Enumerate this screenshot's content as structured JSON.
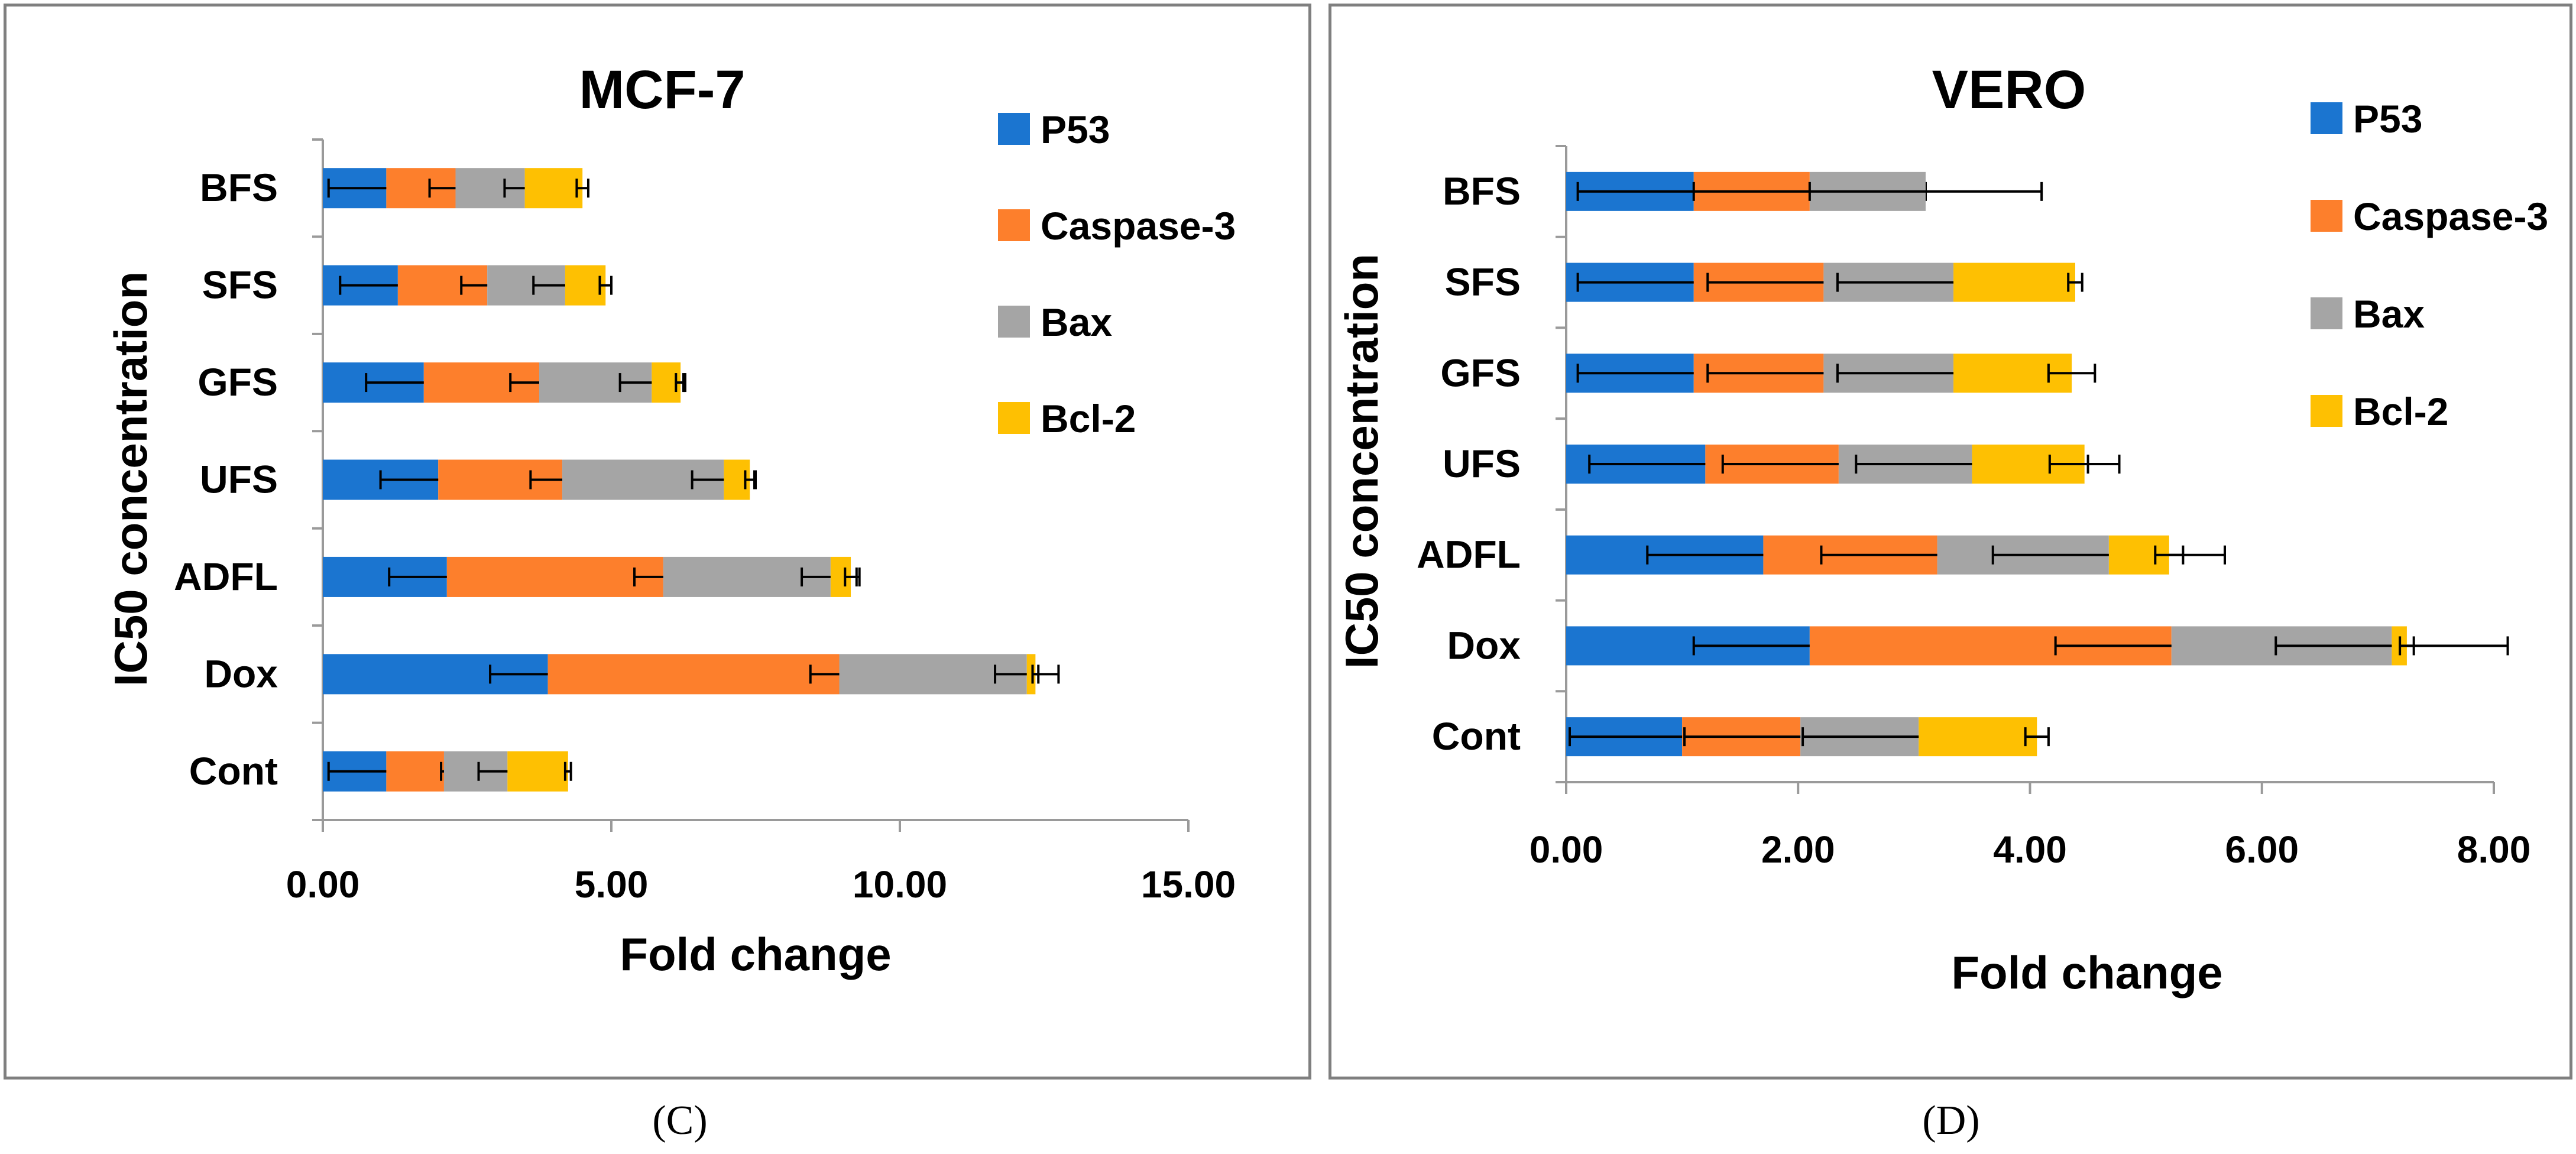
{
  "chart_data": [
    {
      "type": "bar",
      "orientation": "horizontal",
      "stacked": true,
      "title": "MCF-7",
      "xlabel": "Fold change",
      "ylabel": "IC50 concentration",
      "xlim": [
        0,
        15
      ],
      "xticks": [
        "0.00",
        "5.00",
        "10.00",
        "15.00"
      ],
      "xtick_values": [
        0,
        5,
        10,
        15
      ],
      "categories": [
        "BFS",
        "SFS",
        "GFS",
        "UFS",
        "ADFL",
        "Dox",
        "Cont"
      ],
      "series": [
        {
          "name": "P53",
          "color": "#1b75d0",
          "values": [
            1.1,
            1.3,
            1.75,
            2.0,
            2.15,
            3.9,
            1.1
          ],
          "errors": [
            1.0,
            1.0,
            1.0,
            1.0,
            1.0,
            1.0,
            1.0
          ]
        },
        {
          "name": "Caspase-3",
          "color": "#fd7f2c",
          "values": [
            1.2,
            1.55,
            2.0,
            2.15,
            3.75,
            5.05,
            1.0
          ],
          "errors": [
            0.45,
            0.45,
            0.5,
            0.55,
            0.5,
            0.5,
            0.05
          ]
        },
        {
          "name": "Bax",
          "color": "#a5a5a5",
          "values": [
            1.2,
            1.35,
            1.95,
            2.8,
            2.9,
            3.25,
            1.1
          ],
          "errors": [
            0.35,
            0.55,
            0.55,
            0.55,
            0.5,
            0.55,
            0.5
          ]
        },
        {
          "name": "Bcl-2",
          "color": "#fec002",
          "values": [
            1.0,
            0.7,
            0.5,
            0.45,
            0.35,
            0.15,
            1.05
          ],
          "errors": [
            0.1,
            0.1,
            0.08,
            0.08,
            0.1,
            0.05,
            0.05
          ]
        }
      ],
      "legend": "top-right",
      "caption": "(C)"
    },
    {
      "type": "bar",
      "orientation": "horizontal",
      "stacked": true,
      "title": "VERO",
      "xlabel": "Fold change",
      "ylabel": "IC50 concentration",
      "xlim": [
        0,
        8
      ],
      "xticks": [
        "0.00",
        "2.00",
        "4.00",
        "6.00",
        "8.00"
      ],
      "xtick_values": [
        0,
        2,
        4,
        6,
        8
      ],
      "categories": [
        "BFS",
        "SFS",
        "GFS",
        "UFS",
        "ADFL",
        "Dox",
        "Cont"
      ],
      "series": [
        {
          "name": "P53",
          "color": "#1b75d0",
          "values": [
            1.1,
            1.1,
            1.1,
            1.2,
            1.7,
            2.1,
            1.0
          ],
          "errors": [
            1.0,
            1.0,
            1.0,
            1.0,
            1.0,
            1.0,
            1.0
          ]
        },
        {
          "name": "Caspase-3",
          "color": "#fd7f2c",
          "values": [
            1.0,
            1.12,
            1.12,
            1.15,
            1.5,
            3.12,
            1.02
          ],
          "errors": [
            1.0,
            1.0,
            1.0,
            1.0,
            1.0,
            1.0,
            1.0
          ]
        },
        {
          "name": "Bax",
          "color": "#a5a5a5",
          "values": [
            1.0,
            1.12,
            1.12,
            1.15,
            1.48,
            1.9,
            1.02
          ],
          "errors": [
            1.0,
            1.0,
            1.0,
            1.0,
            1.0,
            1.0,
            1.0
          ]
        },
        {
          "name": "Bcl-2",
          "color": "#fec002",
          "values": [
            0.0,
            1.05,
            1.02,
            0.97,
            0.52,
            0.13,
            1.02
          ],
          "errors": [
            0.06,
            0.06,
            0.2,
            0.3,
            0.12,
            0.06,
            0.1
          ]
        }
      ],
      "legend": "top-right",
      "caption": "(D)"
    }
  ]
}
